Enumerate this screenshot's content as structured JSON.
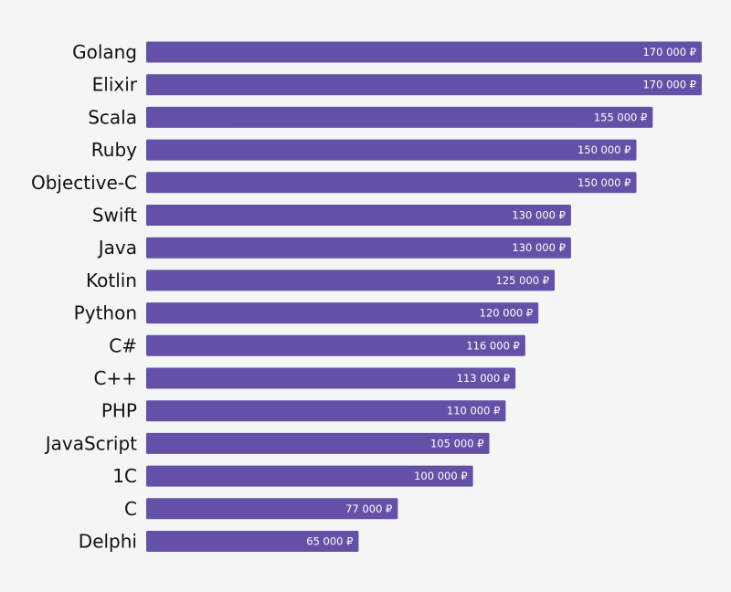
{
  "chart_data": {
    "type": "bar",
    "orientation": "horizontal",
    "title": "",
    "xlabel": "",
    "ylabel": "",
    "categories": [
      "Golang",
      "Elixir",
      "Scala",
      "Ruby",
      "Objective-C",
      "Swift",
      "Java",
      "Kotlin",
      "Python",
      "C#",
      "C++",
      "PHP",
      "JavaScript",
      "1C",
      "C",
      "Delphi"
    ],
    "values": [
      170000,
      170000,
      155000,
      150000,
      150000,
      130000,
      130000,
      125000,
      120000,
      116000,
      113000,
      110000,
      105000,
      100000,
      77000,
      65000
    ],
    "value_labels": [
      "170 000 ₽",
      "170 000 ₽",
      "155 000 ₽",
      "150 000 ₽",
      "150 000 ₽",
      "130 000 ₽",
      "130 000 ₽",
      "125 000 ₽",
      "120 000 ₽",
      "116 000 ₽",
      "113 000 ₽",
      "110 000 ₽",
      "105 000 ₽",
      "100 000 ₽",
      "77 000 ₽",
      "65 000 ₽"
    ],
    "xlim": [
      0,
      170000
    ],
    "grid": false,
    "legend": "none",
    "colors": {
      "bar": "#6450a6",
      "value_text": "#ffffff",
      "category_text": "#111111",
      "background": "#f5f5f5"
    }
  }
}
